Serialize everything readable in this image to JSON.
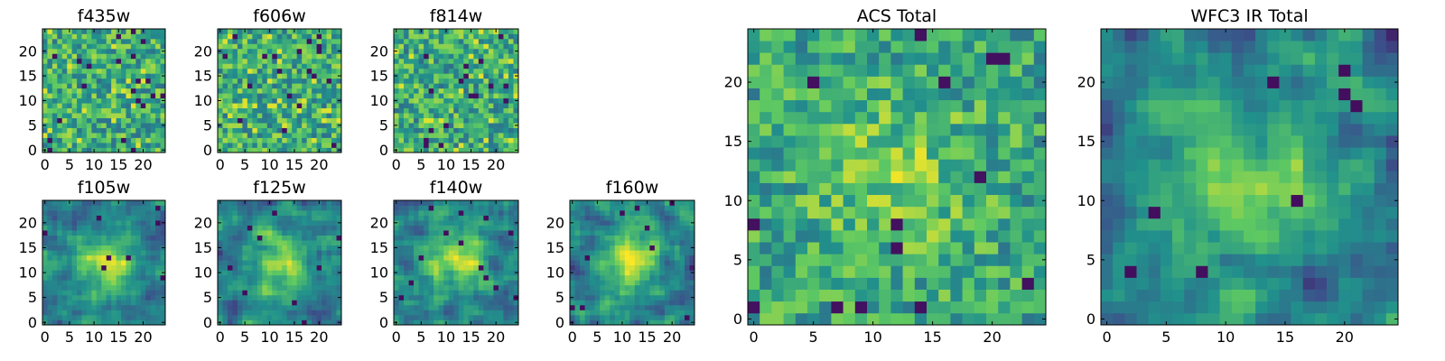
{
  "figure": {
    "colormap": "viridis",
    "colormap_stops": [
      "#440154",
      "#3b528b",
      "#21918c",
      "#5ec962",
      "#fde725"
    ]
  },
  "chart_data": [
    {
      "type": "heatmap",
      "title": "f435w",
      "grid_size": 25,
      "xlim": [
        0,
        24
      ],
      "ylim": [
        0,
        24
      ],
      "xticks": [
        "0",
        "5",
        "10",
        "15",
        "20"
      ],
      "yticks": [
        "0",
        "5",
        "10",
        "15",
        "20"
      ],
      "texture": "noise",
      "value_range": [
        0,
        1
      ]
    },
    {
      "type": "heatmap",
      "title": "f606w",
      "grid_size": 25,
      "xlim": [
        0,
        24
      ],
      "ylim": [
        0,
        24
      ],
      "xticks": [
        "0",
        "5",
        "10",
        "15",
        "20"
      ],
      "yticks": [
        "0",
        "5",
        "10",
        "15",
        "20"
      ],
      "texture": "noise",
      "value_range": [
        0,
        1
      ]
    },
    {
      "type": "heatmap",
      "title": "f814w",
      "grid_size": 25,
      "xlim": [
        0,
        24
      ],
      "ylim": [
        0,
        24
      ],
      "xticks": [
        "0",
        "5",
        "10",
        "15",
        "20"
      ],
      "yticks": [
        "0",
        "5",
        "10",
        "15",
        "20"
      ],
      "texture": "noise",
      "value_range": [
        0,
        1
      ]
    },
    {
      "type": "heatmap",
      "title": "f105w",
      "grid_size": 25,
      "xlim": [
        0,
        24
      ],
      "ylim": [
        0,
        24
      ],
      "xticks": [
        "0",
        "5",
        "10",
        "15",
        "20"
      ],
      "yticks": [
        "0",
        "5",
        "10",
        "15",
        "20"
      ],
      "texture": "smooth-center-peak",
      "value_range": [
        0,
        1
      ]
    },
    {
      "type": "heatmap",
      "title": "f125w",
      "grid_size": 25,
      "xlim": [
        0,
        24
      ],
      "ylim": [
        0,
        24
      ],
      "xticks": [
        "0",
        "5",
        "10",
        "15",
        "20"
      ],
      "yticks": [
        "0",
        "5",
        "10",
        "15",
        "20"
      ],
      "texture": "smooth-center-peak",
      "value_range": [
        0,
        1
      ]
    },
    {
      "type": "heatmap",
      "title": "f140w",
      "grid_size": 25,
      "xlim": [
        0,
        24
      ],
      "ylim": [
        0,
        24
      ],
      "xticks": [
        "0",
        "5",
        "10",
        "15",
        "20"
      ],
      "yticks": [
        "0",
        "5",
        "10",
        "15",
        "20"
      ],
      "texture": "smooth-center-peak",
      "value_range": [
        0,
        1
      ]
    },
    {
      "type": "heatmap",
      "title": "f160w",
      "grid_size": 25,
      "xlim": [
        0,
        24
      ],
      "ylim": [
        0,
        24
      ],
      "xticks": [
        "0",
        "5",
        "10",
        "15",
        "20"
      ],
      "yticks": [
        "0",
        "5",
        "10",
        "15",
        "20"
      ],
      "texture": "smooth-center-peak",
      "value_range": [
        0,
        1
      ]
    },
    {
      "type": "heatmap",
      "title": "ACS Total",
      "grid_size": 25,
      "xlim": [
        0,
        24
      ],
      "ylim": [
        0,
        24
      ],
      "xticks": [
        "0",
        "5",
        "10",
        "15",
        "20"
      ],
      "yticks": [
        "0",
        "5",
        "10",
        "15",
        "20"
      ],
      "texture": "noise-center-peak",
      "value_range": [
        0,
        1
      ]
    },
    {
      "type": "heatmap",
      "title": "WFC3 IR Total",
      "grid_size": 25,
      "xlim": [
        0,
        24
      ],
      "ylim": [
        0,
        24
      ],
      "xticks": [
        "0",
        "5",
        "10",
        "15",
        "20"
      ],
      "yticks": [
        "0",
        "5",
        "10",
        "15",
        "20"
      ],
      "texture": "smooth-center-peak",
      "value_range": [
        0,
        1
      ]
    }
  ]
}
